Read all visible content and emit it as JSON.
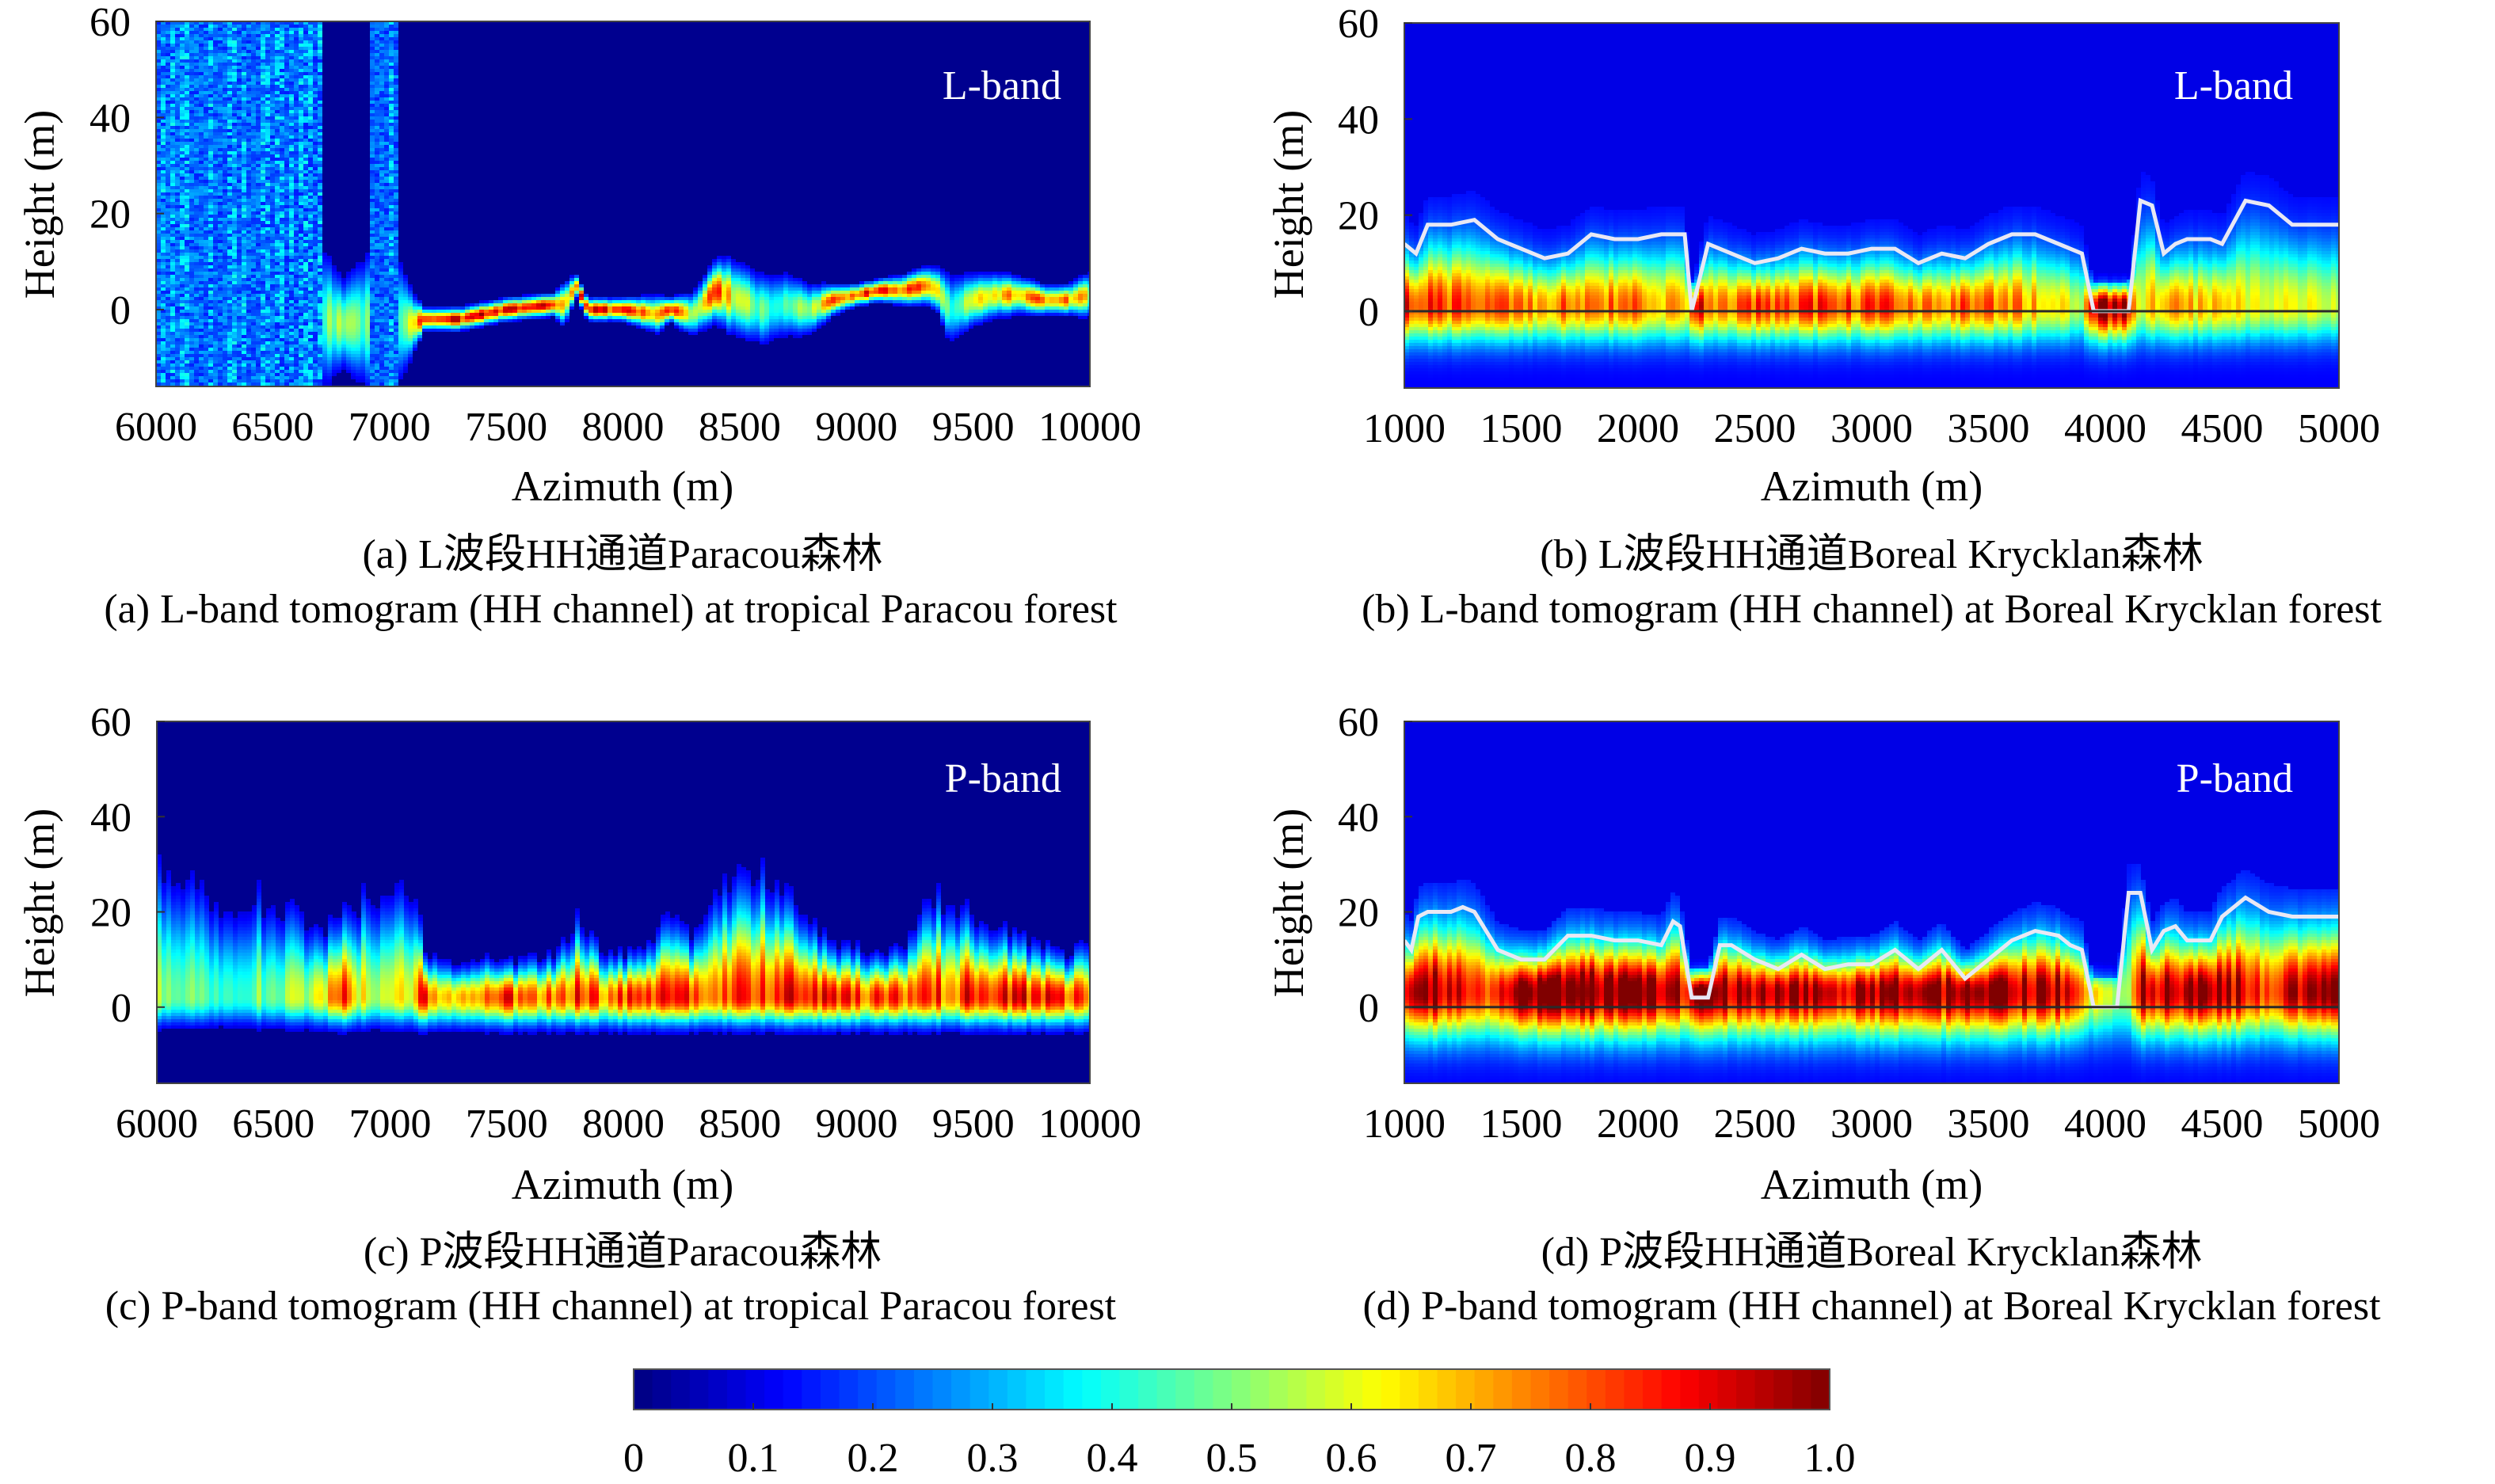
{
  "chart_data": [
    {
      "id": "a",
      "type": "heatmap",
      "band_label": "L-band",
      "xlabel": "Azimuth (m)",
      "ylabel": "Height (m)",
      "xlim": [
        6000,
        10000
      ],
      "ylim": [
        -16,
        60
      ],
      "xticks": [
        "6000",
        "6500",
        "7000",
        "7500",
        "8000",
        "8500",
        "9000",
        "9500",
        "10000"
      ],
      "yticks": [
        "60",
        "40",
        "20",
        "0"
      ],
      "caption_cn": "(a) L波段HH通道Paracou森林",
      "caption_en": "(a) L-band tomogram (HH channel) at tropical Paracou forest",
      "profile": {
        "x": [
          6000,
          6200,
          6400,
          6600,
          6800,
          7000,
          7100,
          7150,
          7300,
          7500,
          7700,
          7750,
          7800,
          7850,
          8000,
          8150,
          8200,
          8300,
          8400,
          8450,
          8500,
          8600,
          8700,
          8800,
          8900,
          9000,
          9100,
          9200,
          9300,
          9350,
          9400,
          9500,
          9600,
          9700,
          9800,
          9900,
          10000
        ],
        "ground_height": [
          0,
          0,
          0,
          0,
          -3,
          -2,
          -3,
          -2,
          -2,
          0,
          1,
          1,
          5,
          0,
          0,
          -1,
          0,
          -1,
          4,
          3,
          2,
          0,
          1,
          0,
          2,
          3,
          4,
          4,
          5,
          4,
          0,
          2,
          3,
          3,
          2,
          2,
          3
        ],
        "peak_intensity": [
          0.3,
          0.35,
          0.3,
          0.35,
          0.55,
          0.4,
          0.6,
          0.9,
          0.9,
          0.92,
          0.9,
          0.6,
          0.9,
          0.9,
          0.88,
          0.7,
          0.85,
          0.6,
          0.8,
          0.7,
          0.6,
          0.45,
          0.5,
          0.6,
          0.8,
          0.85,
          0.85,
          0.8,
          0.85,
          0.7,
          0.45,
          0.6,
          0.7,
          0.75,
          0.8,
          0.8,
          0.6
        ],
        "spread": [
          30,
          30,
          30,
          30,
          12,
          25,
          8,
          3,
          3,
          3,
          3,
          6,
          3,
          3,
          3,
          5,
          3,
          6,
          8,
          10,
          10,
          10,
          9,
          7,
          4,
          3,
          3,
          4,
          5,
          6,
          10,
          7,
          6,
          5,
          4,
          4,
          6
        ]
      }
    },
    {
      "id": "b",
      "type": "heatmap",
      "band_label": "L-band",
      "xlabel": "Azimuth (m)",
      "ylabel": "Height (m)",
      "xlim": [
        1000,
        5000
      ],
      "ylim": [
        -16,
        60
      ],
      "xticks": [
        "1000",
        "1500",
        "2000",
        "2500",
        "3000",
        "3500",
        "4000",
        "4500",
        "5000"
      ],
      "yticks": [
        "60",
        "40",
        "20",
        "0"
      ],
      "caption_cn": "(b) L波段HH通道Boreal Krycklan森林",
      "caption_en": "(b) L-band tomogram (HH channel) at Boreal Krycklan forest",
      "canopy_line": {
        "x": [
          1000,
          1050,
          1100,
          1200,
          1300,
          1400,
          1500,
          1600,
          1700,
          1800,
          1900,
          2000,
          2100,
          2200,
          2230,
          2300,
          2400,
          2500,
          2600,
          2700,
          2800,
          2900,
          3000,
          3100,
          3200,
          3300,
          3400,
          3500,
          3600,
          3700,
          3800,
          3900,
          3950,
          4100,
          4150,
          4200,
          4250,
          4300,
          4350,
          4450,
          4500,
          4600,
          4700,
          4800,
          5000
        ],
        "height": [
          14,
          12,
          18,
          18,
          19,
          15,
          13,
          11,
          12,
          16,
          15,
          15,
          16,
          16,
          0,
          14,
          12,
          10,
          11,
          13,
          12,
          12,
          13,
          13,
          10,
          12,
          11,
          14,
          16,
          16,
          14,
          12,
          0,
          0,
          23,
          22,
          12,
          14,
          15,
          15,
          14,
          23,
          22,
          18,
          18
        ]
      },
      "ground_line_height": 0,
      "profile": {
        "x": [
          1000,
          1200,
          1400,
          1600,
          1800,
          2000,
          2200,
          2250,
          2300,
          2500,
          2700,
          2900,
          3100,
          3300,
          3500,
          3700,
          3900,
          3950,
          4100,
          4150,
          4200,
          4300,
          4500,
          4700,
          5000
        ],
        "peak_intensity": [
          0.75,
          0.7,
          0.65,
          0.65,
          0.7,
          0.65,
          0.55,
          0.9,
          0.6,
          0.7,
          0.75,
          0.7,
          0.7,
          0.65,
          0.7,
          0.6,
          0.45,
          0.9,
          0.9,
          0.4,
          0.6,
          0.6,
          0.55,
          0.5,
          0.5
        ]
      }
    },
    {
      "id": "c",
      "type": "heatmap",
      "band_label": "P-band",
      "xlabel": "Azimuth (m)",
      "ylabel": "Height (m)",
      "xlim": [
        6000,
        10000
      ],
      "ylim": [
        -16,
        60
      ],
      "xticks": [
        "6000",
        "6500",
        "7000",
        "7500",
        "8000",
        "8500",
        "9000",
        "9500",
        "10000"
      ],
      "yticks": [
        "60",
        "40",
        "20",
        "0"
      ],
      "caption_cn": "(c) P波段HH通道Paracou森林",
      "caption_en": "(c) P-band tomogram (HH channel) at tropical Paracou forest",
      "profile": {
        "x": [
          6000,
          6100,
          6200,
          6300,
          6400,
          6500,
          6600,
          6700,
          6800,
          6900,
          7000,
          7100,
          7150,
          7200,
          7300,
          7400,
          7500,
          7600,
          7700,
          7800,
          7900,
          8000,
          8100,
          8200,
          8300,
          8350,
          8400,
          8500,
          8600,
          8700,
          8800,
          8900,
          9000,
          9100,
          9200,
          9300,
          9400,
          9500,
          9600,
          9700,
          9800,
          9900,
          10000
        ],
        "canopy_height": [
          32,
          30,
          28,
          22,
          26,
          22,
          20,
          14,
          18,
          24,
          26,
          26,
          8,
          8,
          6,
          8,
          6,
          8,
          8,
          16,
          10,
          8,
          10,
          18,
          12,
          20,
          24,
          26,
          28,
          22,
          16,
          10,
          10,
          8,
          10,
          20,
          22,
          16,
          14,
          12,
          10,
          8,
          12
        ],
        "peak_intensity": [
          0.55,
          0.5,
          0.5,
          0.45,
          0.5,
          0.5,
          0.55,
          0.6,
          0.85,
          0.6,
          0.65,
          0.7,
          0.9,
          0.7,
          0.75,
          0.8,
          0.85,
          0.8,
          0.8,
          0.85,
          0.8,
          0.82,
          0.85,
          0.9,
          0.85,
          0.85,
          0.8,
          0.85,
          0.85,
          0.9,
          0.88,
          0.88,
          0.85,
          0.85,
          0.82,
          0.85,
          0.8,
          0.88,
          0.85,
          0.88,
          0.85,
          0.85,
          0.8
        ]
      }
    },
    {
      "id": "d",
      "type": "heatmap",
      "band_label": "P-band",
      "xlabel": "Azimuth (m)",
      "ylabel": "Height (m)",
      "xlim": [
        1000,
        5000
      ],
      "ylim": [
        -16,
        60
      ],
      "xticks": [
        "1000",
        "1500",
        "2000",
        "2500",
        "3000",
        "3500",
        "4000",
        "4500",
        "5000"
      ],
      "yticks": [
        "60",
        "40",
        "20",
        "0"
      ],
      "caption_cn": "(d) P波段HH通道Boreal Krycklan森林",
      "caption_en": "(d) P-band tomogram (HH channel) at Boreal Krycklan forest",
      "canopy_line": {
        "x": [
          1000,
          1030,
          1060,
          1100,
          1200,
          1250,
          1300,
          1400,
          1500,
          1600,
          1700,
          1800,
          1900,
          2000,
          2100,
          2150,
          2180,
          2230,
          2300,
          2350,
          2400,
          2500,
          2600,
          2700,
          2800,
          2900,
          3000,
          3100,
          3200,
          3300,
          3400,
          3500,
          3600,
          3700,
          3800,
          3850,
          3900,
          3950,
          4000,
          4050,
          4100,
          4150,
          4200,
          4250,
          4300,
          4350,
          4450,
          4500,
          4600,
          4700,
          4800,
          4900,
          5000
        ],
        "height": [
          14,
          12,
          19,
          20,
          20,
          21,
          20,
          12,
          10,
          10,
          15,
          15,
          14,
          14,
          13,
          18,
          17,
          2,
          2,
          13,
          13,
          10,
          8,
          11,
          8,
          9,
          9,
          12,
          8,
          12,
          6,
          10,
          14,
          16,
          15,
          13,
          12,
          0,
          0,
          0,
          24,
          24,
          12,
          16,
          17,
          14,
          14,
          19,
          23,
          20,
          19,
          19,
          19
        ]
      },
      "ground_line_height": 0,
      "profile": {
        "x": [
          1000,
          1100,
          1200,
          1300,
          1400,
          1500,
          1700,
          1900,
          2100,
          2200,
          2250,
          2400,
          2600,
          2800,
          2900,
          3000,
          3200,
          3400,
          3600,
          3800,
          3900,
          4000,
          4100,
          4150,
          4200,
          4300,
          4500,
          4600,
          4700,
          4800,
          5000
        ],
        "peak_intensity": [
          0.85,
          0.9,
          0.85,
          0.8,
          0.7,
          0.95,
          0.95,
          0.95,
          0.92,
          0.8,
          0.9,
          0.9,
          0.85,
          0.9,
          0.85,
          0.9,
          0.88,
          0.9,
          0.9,
          0.88,
          0.6,
          0.45,
          0.5,
          0.85,
          0.8,
          0.88,
          0.9,
          0.8,
          0.7,
          0.85,
          0.85
        ]
      }
    }
  ],
  "colorbar": {
    "colormap": "jet",
    "range": [
      0,
      1.0
    ],
    "ticks": [
      "0",
      "0.1",
      "0.2",
      "0.3",
      "0.4",
      "0.5",
      "0.6",
      "0.7",
      "0.8",
      "0.9",
      "1.0"
    ]
  },
  "colors": {
    "background_lowest": "#00008f",
    "canopy_line": "#e8e8f4",
    "ground_line": "#2a2a2a"
  }
}
